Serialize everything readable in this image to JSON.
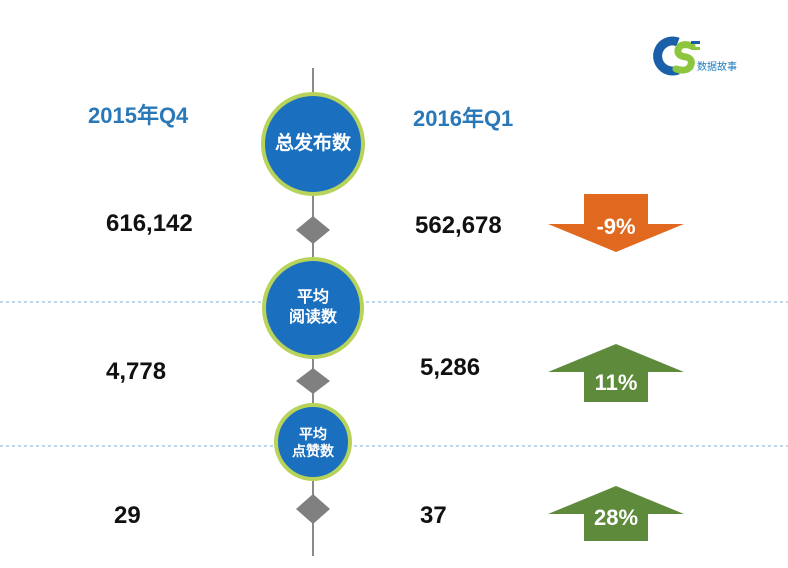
{
  "logo": {
    "letters": "CS",
    "text": "数据故事"
  },
  "periods": {
    "left": "2015年Q4",
    "right": "2016年Q1"
  },
  "colors": {
    "period_text": "#2a78b8",
    "circle_fill": "#1b6fbf",
    "circle_ring": "#b7d35a",
    "axis": "#8a8a8a",
    "diamond": "#808080",
    "divider": "#7ab3d6",
    "down_arrow": "#e0691f",
    "up_arrow": "#5e8a3c"
  },
  "chart_data": {
    "type": "table",
    "columns": [
      "2015年Q4",
      "2016年Q1"
    ],
    "metrics": [
      {
        "label_lines": [
          "总发布数"
        ],
        "q4": "616,142",
        "q1": "562,678",
        "change": "-9%",
        "direction": "down"
      },
      {
        "label_lines": [
          "平均",
          "阅读数"
        ],
        "q4": "4,778",
        "q1": "5,286",
        "change": "11%",
        "direction": "up"
      },
      {
        "label_lines": [
          "平均",
          "点赞数"
        ],
        "q4": "29",
        "q1": "37",
        "change": "28%",
        "direction": "up"
      }
    ]
  }
}
